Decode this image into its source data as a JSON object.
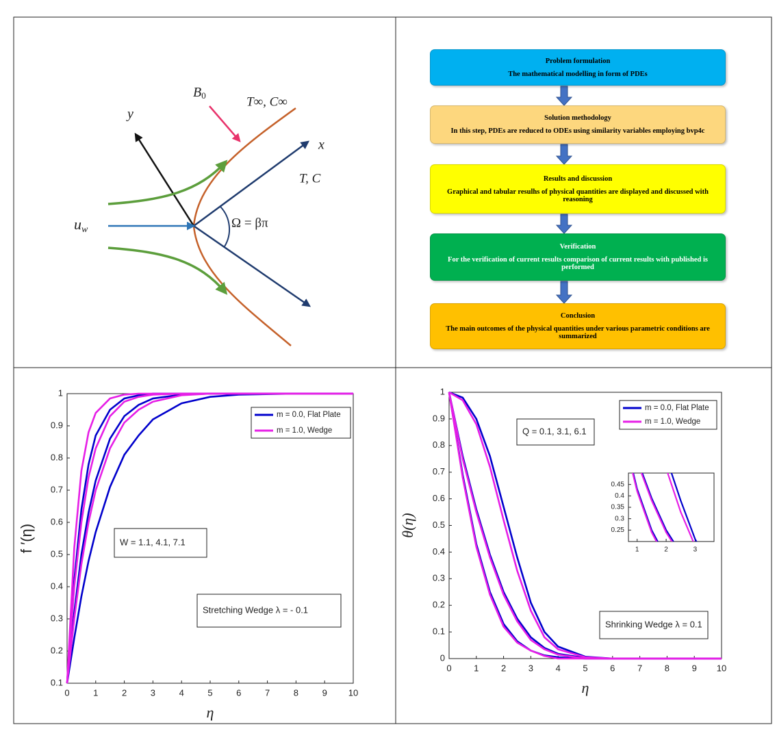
{
  "schematic": {
    "labels": {
      "field": {
        "base": "B",
        "sub": "0"
      },
      "ambient": "T∞, C∞",
      "y_axis": "y",
      "x_axis": "x",
      "wall": "T, C",
      "velocity": {
        "base": "u",
        "sub": "w"
      },
      "angle": "Ω = βπ"
    }
  },
  "flowchart": {
    "steps": [
      {
        "title": "Problem formulation",
        "text": "The mathematical modelling in form of PDEs",
        "color": "#00b0f0"
      },
      {
        "title": "Solution methodology",
        "text": "In this step, PDEs are reduced to ODEs using similarity variables employing bvp4c",
        "color": "#fdd77e"
      },
      {
        "title": "Results and discussion",
        "text": "Graphical and tabular resulhs of physical quantities are displayed and discussed with reasoning",
        "color": "#ffff00"
      },
      {
        "title": "Verification",
        "text": "For the verification of current results comparison of current results with published is performed",
        "color": "#00b050"
      },
      {
        "title": "Conclusion",
        "text": "The main outcomes of the physical quantities under various parametric conditions are summarized",
        "color": "#ffc000"
      }
    ]
  },
  "chart_data": [
    {
      "type": "line",
      "x_label": "η",
      "y_label": "f ′(η)",
      "x": [
        0,
        0.25,
        0.5,
        0.75,
        1,
        1.5,
        2,
        2.5,
        3,
        4,
        5,
        6,
        8,
        10
      ],
      "series": [
        {
          "name": "m = 0.0, Flat Plate",
          "color": "#0000cc",
          "values": [
            [
              0.1,
              0.42,
              0.64,
              0.78,
              0.87,
              0.95,
              0.985,
              0.995,
              1,
              1,
              1,
              1,
              1,
              1
            ],
            [
              0.1,
              0.32,
              0.5,
              0.63,
              0.73,
              0.86,
              0.93,
              0.965,
              0.985,
              0.997,
              1,
              1,
              1,
              1
            ],
            [
              0.1,
              0.24,
              0.37,
              0.48,
              0.57,
              0.71,
              0.81,
              0.87,
              0.92,
              0.97,
              0.99,
              0.997,
              1,
              1
            ]
          ]
        },
        {
          "name": "m = 1.0, Wedge",
          "color": "#e61ee6",
          "values": [
            [
              0.1,
              0.52,
              0.76,
              0.88,
              0.94,
              0.985,
              0.997,
              1,
              1,
              1,
              1,
              1,
              1,
              1
            ],
            [
              0.1,
              0.4,
              0.6,
              0.74,
              0.83,
              0.93,
              0.975,
              0.99,
              0.997,
              1,
              1,
              1,
              1,
              1
            ],
            [
              0.1,
              0.3,
              0.47,
              0.6,
              0.7,
              0.83,
              0.91,
              0.95,
              0.975,
              0.995,
              1,
              1,
              1,
              1
            ]
          ]
        }
      ],
      "xlim": [
        0,
        10
      ],
      "ylim": [
        0.1,
        1
      ],
      "xticks": [
        0,
        1,
        2,
        3,
        4,
        5,
        6,
        7,
        8,
        9,
        10
      ],
      "yticks": [
        0.1,
        0.2,
        0.3,
        0.4,
        0.5,
        0.6,
        0.7,
        0.8,
        0.9,
        1
      ],
      "legend": "upper right",
      "annotations": [
        "W = 1.1, 4.1, 7.1",
        "Stretching Wedge λ = - 0.1"
      ]
    },
    {
      "type": "line",
      "x_label": "η",
      "y_label": "θ(η)",
      "x": [
        0,
        0.5,
        1,
        1.5,
        2,
        2.5,
        3,
        3.5,
        4,
        5,
        6,
        8,
        10
      ],
      "series": [
        {
          "name": "m = 0.0, Flat Plate",
          "color": "#0000cc",
          "values": [
            [
              1,
              0.69,
              0.43,
              0.25,
              0.13,
              0.065,
              0.03,
              0.012,
              0.005,
              0,
              0,
              0,
              0
            ],
            [
              1,
              0.76,
              0.56,
              0.39,
              0.25,
              0.15,
              0.08,
              0.04,
              0.018,
              0.002,
              0,
              0,
              0
            ],
            [
              1,
              0.98,
              0.9,
              0.76,
              0.57,
              0.38,
              0.21,
              0.1,
              0.045,
              0.007,
              0,
              0,
              0
            ]
          ]
        },
        {
          "name": "m = 1.0, Wedge",
          "color": "#e61ee6",
          "values": [
            [
              1,
              0.68,
              0.42,
              0.24,
              0.12,
              0.06,
              0.03,
              0.01,
              0,
              0,
              0,
              0,
              0
            ],
            [
              1,
              0.75,
              0.55,
              0.38,
              0.24,
              0.14,
              0.07,
              0.035,
              0.015,
              0,
              0,
              0,
              0
            ],
            [
              1,
              0.97,
              0.88,
              0.72,
              0.52,
              0.33,
              0.18,
              0.08,
              0.035,
              0.005,
              0,
              0,
              0
            ]
          ]
        }
      ],
      "xlim": [
        0,
        10
      ],
      "ylim": [
        0,
        1
      ],
      "xticks": [
        0,
        1,
        2,
        3,
        4,
        5,
        6,
        7,
        8,
        9,
        10
      ],
      "yticks": [
        0,
        0.1,
        0.2,
        0.3,
        0.4,
        0.5,
        0.6,
        0.7,
        0.8,
        0.9,
        1
      ],
      "legend": "upper right",
      "annotations": [
        "Q = 0.1, 3.1, 6.1",
        "Shrinking Wedge λ = 0.1"
      ],
      "inset": {
        "xlim": [
          0.7,
          3.65
        ],
        "ylim": [
          0.2,
          0.5
        ],
        "xticks": [
          1,
          2,
          3
        ],
        "yticks": [
          0.25,
          0.3,
          0.35,
          0.4,
          0.45
        ]
      }
    }
  ]
}
